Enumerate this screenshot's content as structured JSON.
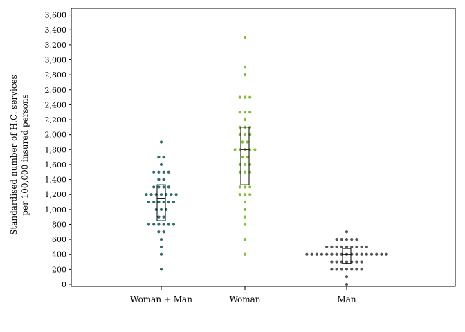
{
  "chart_data": {
    "type": "dot-box",
    "title": "",
    "xlabel": "",
    "ylabel_lines": [
      "Standardised number of H.C. services",
      "per 100,000 insured persons"
    ],
    "ylim": [
      0,
      3600
    ],
    "yticks": [
      0,
      200,
      400,
      600,
      800,
      1000,
      1200,
      1400,
      1600,
      1800,
      2000,
      2200,
      2400,
      2600,
      2800,
      3000,
      3200,
      3400,
      3600
    ],
    "ytick_labels": [
      "0",
      "200",
      "400",
      "600",
      "800",
      "1,000",
      "1,200",
      "1,400",
      "1,600",
      "1,800",
      "2,000",
      "2,200",
      "2,400",
      "2,600",
      "2,800",
      "3,000",
      "3,200",
      "3,400",
      "3,600"
    ],
    "grid": false,
    "legend": "none",
    "categories": [
      "Woman + Man",
      "Woman",
      "Man"
    ],
    "series": [
      {
        "color": "#2a6e6e",
        "box": {
          "q1": 850,
          "median": 1150,
          "q3": 1330
        },
        "points": [
          200,
          400,
          500,
          600,
          700,
          700,
          800,
          800,
          800,
          800,
          800,
          800,
          900,
          900,
          1000,
          1000,
          1000,
          1100,
          1100,
          1100,
          1100,
          1100,
          1100,
          1200,
          1200,
          1200,
          1200,
          1200,
          1200,
          1200,
          1300,
          1300,
          1300,
          1300,
          1400,
          1400,
          1500,
          1500,
          1500,
          1500,
          1600,
          1700,
          1700,
          1900
        ]
      },
      {
        "color": "#7dc22a",
        "box": {
          "q1": 1330,
          "median": 1800,
          "q3": 2100
        },
        "points": [
          400,
          600,
          800,
          900,
          1000,
          1100,
          1200,
          1200,
          1200,
          1300,
          1300,
          1300,
          1500,
          1500,
          1500,
          1600,
          1600,
          1600,
          1700,
          1700,
          1800,
          1800,
          1800,
          1800,
          1800,
          1900,
          1900,
          2000,
          2000,
          2000,
          2100,
          2100,
          2100,
          2200,
          2300,
          2300,
          2300,
          2500,
          2500,
          2500,
          2800,
          2900,
          3300
        ]
      },
      {
        "color": "#555555",
        "box": {
          "q1": 280,
          "median": 400,
          "q3": 480
        },
        "points": [
          0,
          100,
          200,
          200,
          200,
          200,
          200,
          200,
          200,
          300,
          300,
          300,
          300,
          300,
          300,
          300,
          400,
          400,
          400,
          400,
          400,
          400,
          400,
          400,
          400,
          400,
          400,
          400,
          400,
          400,
          400,
          400,
          400,
          500,
          500,
          500,
          500,
          500,
          500,
          500,
          500,
          500,
          600,
          600,
          600,
          600,
          600,
          700
        ]
      }
    ]
  }
}
